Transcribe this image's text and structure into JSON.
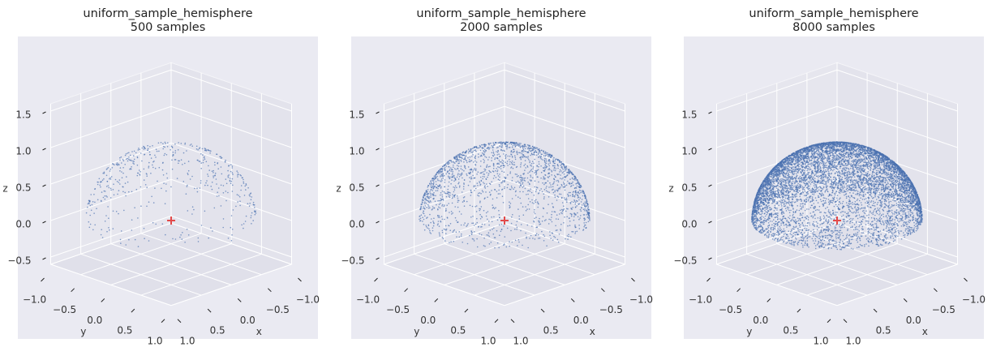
{
  "chart_data": [
    {
      "type": "scatter3d",
      "title": "uniform_sample_hemisphere",
      "subtitle": "500 samples",
      "n": 500,
      "color": "#4c72b0",
      "xlabel": "x",
      "ylabel": "y",
      "zlabel": "z",
      "xlim": [
        -1,
        1
      ],
      "ylim": [
        -1,
        1
      ],
      "zlim": [
        -0.6,
        1.6
      ],
      "xticks": [
        {
          "value": -1,
          "label": "−1.0"
        },
        {
          "value": -0.5,
          "label": "−0.5"
        },
        {
          "value": 0,
          "label": "0.0"
        },
        0.5,
        {
          "value": 1,
          "label": "1.0"
        }
      ],
      "yticks": [
        {
          "value": -1,
          "label": "−1.0"
        },
        {
          "value": -0.5,
          "label": "−0.5"
        },
        {
          "value": 0,
          "label": "0.0"
        },
        0.5,
        {
          "value": 1,
          "label": "1.0"
        }
      ],
      "zticks": [
        {
          "value": -0.5,
          "label": "−0.5"
        },
        {
          "value": 0,
          "label": "0.0"
        },
        0.5,
        {
          "value": 1,
          "label": "1.0"
        },
        1.5
      ],
      "origin_marker": {
        "x": 0,
        "y": 0,
        "z": 0,
        "color": "#e24a4a"
      },
      "grid": true
    },
    {
      "type": "scatter3d",
      "title": "uniform_sample_hemisphere",
      "subtitle": "2000 samples",
      "n": 2000,
      "color": "#4c72b0",
      "xlabel": "x",
      "ylabel": "y",
      "zlabel": "z",
      "xlim": [
        -1,
        1
      ],
      "ylim": [
        -1,
        1
      ],
      "zlim": [
        -0.6,
        1.6
      ],
      "xticks": [
        {
          "value": -1,
          "label": "−1.0"
        },
        {
          "value": -0.5,
          "label": "−0.5"
        },
        {
          "value": 0,
          "label": "0.0"
        },
        0.5,
        {
          "value": 1,
          "label": "1.0"
        }
      ],
      "yticks": [
        {
          "value": -1,
          "label": "−1.0"
        },
        {
          "value": -0.5,
          "label": "−0.5"
        },
        {
          "value": 0,
          "label": "0.0"
        },
        0.5,
        {
          "value": 1,
          "label": "1.0"
        }
      ],
      "zticks": [
        {
          "value": -0.5,
          "label": "−0.5"
        },
        {
          "value": 0,
          "label": "0.0"
        },
        0.5,
        {
          "value": 1,
          "label": "1.0"
        },
        1.5
      ],
      "origin_marker": {
        "x": 0,
        "y": 0,
        "z": 0,
        "color": "#e24a4a"
      },
      "grid": true
    },
    {
      "type": "scatter3d",
      "title": "uniform_sample_hemisphere",
      "subtitle": "8000 samples",
      "n": 8000,
      "color": "#4c72b0",
      "xlabel": "x",
      "ylabel": "y",
      "zlabel": "z",
      "xlim": [
        -1,
        1
      ],
      "ylim": [
        -1,
        1
      ],
      "zlim": [
        -0.6,
        1.6
      ],
      "xticks": [
        {
          "value": -1,
          "label": "−1.0"
        },
        {
          "value": -0.5,
          "label": "−0.5"
        },
        {
          "value": 0,
          "label": "0.0"
        },
        0.5,
        {
          "value": 1,
          "label": "1.0"
        }
      ],
      "yticks": [
        {
          "value": -1,
          "label": "−1.0"
        },
        {
          "value": -0.5,
          "label": "−0.5"
        },
        {
          "value": 0,
          "label": "0.0"
        },
        0.5,
        {
          "value": 1,
          "label": "1.0"
        }
      ],
      "zticks": [
        {
          "value": -0.5,
          "label": "−0.5"
        },
        {
          "value": 0,
          "label": "0.0"
        },
        0.5,
        {
          "value": 1,
          "label": "1.0"
        },
        1.5
      ],
      "origin_marker": {
        "x": 0,
        "y": 0,
        "z": 0,
        "color": "#e24a4a"
      },
      "grid": true
    }
  ]
}
